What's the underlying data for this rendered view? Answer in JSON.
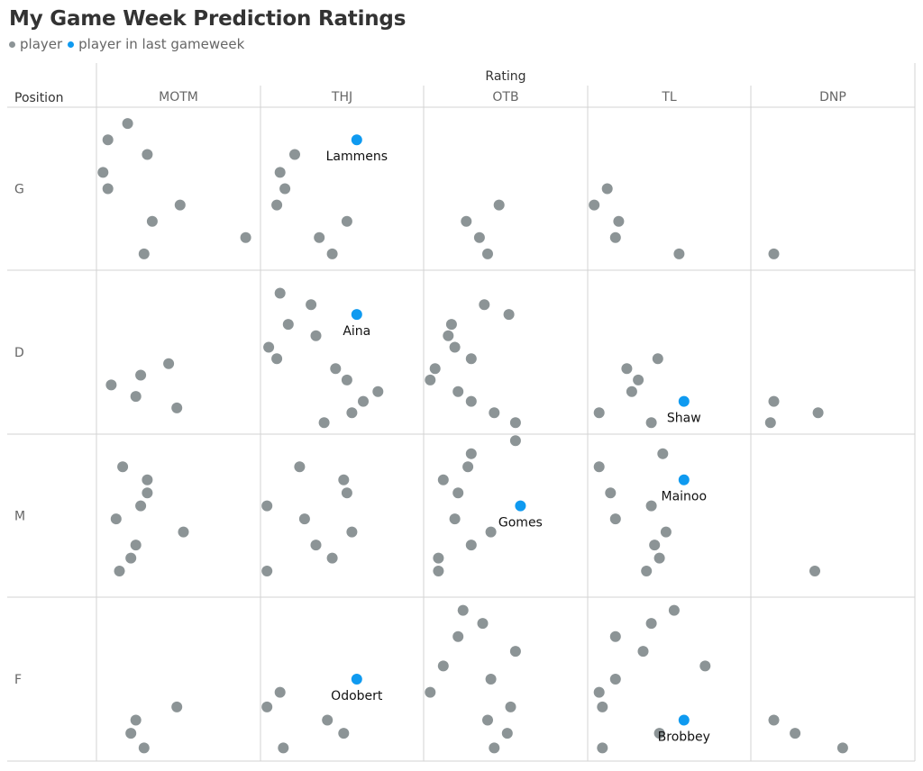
{
  "title": "My Game Week Prediction Ratings",
  "legend": [
    {
      "label": "player",
      "color": "#8c9496"
    },
    {
      "label": "player in last gameweek",
      "color": "#0f9af0"
    }
  ],
  "chart_data": {
    "type": "scatter",
    "column_header": "Rating",
    "row_header": "Position",
    "columns": [
      "MOTM",
      "THJ",
      "OTB",
      "TL",
      "DNP"
    ],
    "rows": [
      "G",
      "D",
      "M",
      "F"
    ],
    "colors": {
      "player": "#8c9496",
      "highlight": "#0f9af0"
    },
    "grid": true,
    "cells": {
      "G-MOTM": [
        [
          0.19,
          0.9
        ],
        [
          0.07,
          0.8
        ],
        [
          0.31,
          0.71
        ],
        [
          0.04,
          0.6
        ],
        [
          0.07,
          0.5
        ],
        [
          0.51,
          0.4
        ],
        [
          0.34,
          0.3
        ],
        [
          0.91,
          0.2
        ],
        [
          0.29,
          0.1
        ]
      ],
      "G-THJ": [
        [
          0.21,
          0.71
        ],
        [
          0.12,
          0.6
        ],
        [
          0.15,
          0.5
        ],
        [
          0.1,
          0.4
        ],
        [
          0.53,
          0.3
        ],
        [
          0.36,
          0.2
        ],
        [
          0.44,
          0.1
        ]
      ],
      "G-OTB": [
        [
          0.46,
          0.4
        ],
        [
          0.26,
          0.3
        ],
        [
          0.34,
          0.2
        ],
        [
          0.39,
          0.1
        ]
      ],
      "G-TL": [
        [
          0.12,
          0.5
        ],
        [
          0.04,
          0.4
        ],
        [
          0.19,
          0.3
        ],
        [
          0.17,
          0.2
        ],
        [
          0.56,
          0.1
        ]
      ],
      "G-DNP": [
        [
          0.14,
          0.1
        ]
      ],
      "D-MOTM": [
        [
          0.44,
          0.43
        ],
        [
          0.27,
          0.36
        ],
        [
          0.09,
          0.3
        ],
        [
          0.24,
          0.23
        ],
        [
          0.49,
          0.16
        ]
      ],
      "D-THJ": [
        [
          0.12,
          0.86
        ],
        [
          0.31,
          0.79
        ],
        [
          0.17,
          0.67
        ],
        [
          0.34,
          0.6
        ],
        [
          0.05,
          0.53
        ],
        [
          0.1,
          0.46
        ],
        [
          0.46,
          0.4
        ],
        [
          0.53,
          0.33
        ],
        [
          0.72,
          0.26
        ],
        [
          0.63,
          0.2
        ],
        [
          0.56,
          0.13
        ],
        [
          0.39,
          0.07
        ]
      ],
      "D-OTB": [
        [
          0.37,
          0.79
        ],
        [
          0.52,
          0.73
        ],
        [
          0.17,
          0.67
        ],
        [
          0.15,
          0.6
        ],
        [
          0.19,
          0.53
        ],
        [
          0.29,
          0.46
        ],
        [
          0.07,
          0.4
        ],
        [
          0.04,
          0.33
        ],
        [
          0.21,
          0.26
        ],
        [
          0.29,
          0.2
        ],
        [
          0.43,
          0.13
        ],
        [
          0.56,
          0.07
        ]
      ],
      "D-TL": [
        [
          0.43,
          0.46
        ],
        [
          0.24,
          0.4
        ],
        [
          0.31,
          0.33
        ],
        [
          0.27,
          0.26
        ],
        [
          0.07,
          0.13
        ],
        [
          0.39,
          0.07
        ]
      ],
      "D-DNP": [
        [
          0.14,
          0.2
        ],
        [
          0.41,
          0.13
        ],
        [
          0.12,
          0.07
        ]
      ],
      "M-MOTM": [
        [
          0.16,
          0.8
        ],
        [
          0.31,
          0.72
        ],
        [
          0.31,
          0.64
        ],
        [
          0.27,
          0.56
        ],
        [
          0.12,
          0.48
        ],
        [
          0.53,
          0.4
        ],
        [
          0.24,
          0.32
        ],
        [
          0.21,
          0.24
        ],
        [
          0.14,
          0.16
        ]
      ],
      "M-THJ": [
        [
          0.24,
          0.8
        ],
        [
          0.51,
          0.72
        ],
        [
          0.53,
          0.64
        ],
        [
          0.04,
          0.56
        ],
        [
          0.27,
          0.48
        ],
        [
          0.56,
          0.4
        ],
        [
          0.34,
          0.32
        ],
        [
          0.44,
          0.24
        ],
        [
          0.04,
          0.16
        ]
      ],
      "M-OTB": [
        [
          0.56,
          0.96
        ],
        [
          0.29,
          0.88
        ],
        [
          0.27,
          0.8
        ],
        [
          0.12,
          0.72
        ],
        [
          0.21,
          0.64
        ],
        [
          0.19,
          0.48
        ],
        [
          0.41,
          0.4
        ],
        [
          0.29,
          0.32
        ],
        [
          0.09,
          0.24
        ],
        [
          0.09,
          0.16
        ]
      ],
      "M-TL": [
        [
          0.46,
          0.88
        ],
        [
          0.07,
          0.8
        ],
        [
          0.14,
          0.64
        ],
        [
          0.39,
          0.56
        ],
        [
          0.17,
          0.48
        ],
        [
          0.48,
          0.4
        ],
        [
          0.41,
          0.32
        ],
        [
          0.44,
          0.24
        ],
        [
          0.36,
          0.16
        ]
      ],
      "M-DNP": [
        [
          0.39,
          0.16
        ]
      ],
      "F-MOTM": [
        [
          0.49,
          0.33
        ],
        [
          0.24,
          0.25
        ],
        [
          0.21,
          0.17
        ],
        [
          0.29,
          0.08
        ]
      ],
      "F-THJ": [
        [
          0.12,
          0.42
        ],
        [
          0.04,
          0.33
        ],
        [
          0.41,
          0.25
        ],
        [
          0.51,
          0.17
        ],
        [
          0.14,
          0.08
        ]
      ],
      "F-OTB": [
        [
          0.24,
          0.92
        ],
        [
          0.36,
          0.84
        ],
        [
          0.21,
          0.76
        ],
        [
          0.56,
          0.67
        ],
        [
          0.12,
          0.58
        ],
        [
          0.41,
          0.5
        ],
        [
          0.04,
          0.42
        ],
        [
          0.53,
          0.33
        ],
        [
          0.39,
          0.25
        ],
        [
          0.51,
          0.17
        ],
        [
          0.43,
          0.08
        ]
      ],
      "F-TL": [
        [
          0.53,
          0.92
        ],
        [
          0.39,
          0.84
        ],
        [
          0.17,
          0.76
        ],
        [
          0.34,
          0.67
        ],
        [
          0.72,
          0.58
        ],
        [
          0.17,
          0.5
        ],
        [
          0.07,
          0.42
        ],
        [
          0.09,
          0.33
        ],
        [
          0.44,
          0.17
        ],
        [
          0.09,
          0.08
        ]
      ],
      "F-DNP": [
        [
          0.14,
          0.25
        ],
        [
          0.27,
          0.17
        ],
        [
          0.56,
          0.08
        ]
      ]
    },
    "highlights": [
      {
        "cell": "G-THJ",
        "x": 0.59,
        "y": 0.8,
        "label": "Lammens"
      },
      {
        "cell": "D-THJ",
        "x": 0.59,
        "y": 0.73,
        "label": "Aina"
      },
      {
        "cell": "D-TL",
        "x": 0.59,
        "y": 0.2,
        "label": "Shaw"
      },
      {
        "cell": "M-TL",
        "x": 0.59,
        "y": 0.72,
        "label": "Mainoo"
      },
      {
        "cell": "M-OTB",
        "x": 0.59,
        "y": 0.56,
        "label": "Gomes"
      },
      {
        "cell": "F-THJ",
        "x": 0.59,
        "y": 0.5,
        "label": "Odobert"
      },
      {
        "cell": "F-TL",
        "x": 0.59,
        "y": 0.25,
        "label": "Brobbey"
      }
    ]
  }
}
